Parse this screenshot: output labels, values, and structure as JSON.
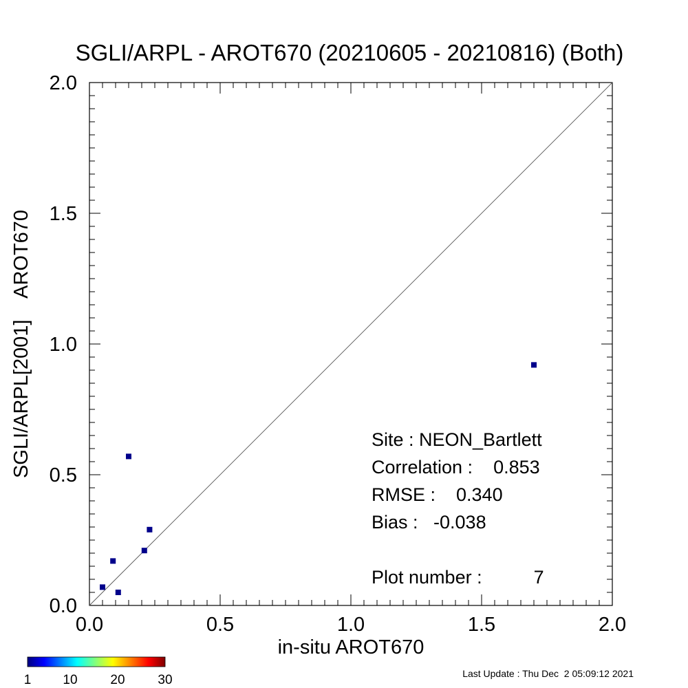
{
  "chart_data": {
    "type": "scatter",
    "title": "SGLI/ARPL - AROT670 (20210605 - 20210816) (Both)",
    "xlabel": "in-situ AROT670",
    "ylabel": "SGLI/ARPL[2001]    AROT670",
    "xlim": [
      0.0,
      2.0
    ],
    "ylim": [
      0.0,
      2.0
    ],
    "xticks": [
      "0.0",
      "0.5",
      "1.0",
      "1.5",
      "2.0"
    ],
    "yticks": [
      "0.0",
      "0.5",
      "1.0",
      "1.5",
      "2.0"
    ],
    "one_to_one_line": true,
    "grid": false,
    "points": [
      {
        "x": 0.05,
        "y": 0.07
      },
      {
        "x": 0.09,
        "y": 0.17
      },
      {
        "x": 0.11,
        "y": 0.05
      },
      {
        "x": 0.15,
        "y": 0.57
      },
      {
        "x": 0.21,
        "y": 0.21
      },
      {
        "x": 0.23,
        "y": 0.29
      },
      {
        "x": 1.7,
        "y": 0.92
      }
    ],
    "point_color": "#00008b",
    "stats": {
      "site": "Site : NEON_Bartlett",
      "correlation": "Correlation :    0.853",
      "rmse": "RMSE :    0.340",
      "bias": "Bias :   -0.038",
      "plot_number": "Plot number :          7"
    },
    "colorbar": {
      "labels": [
        "1",
        "10",
        "20",
        "30"
      ],
      "range": [
        1,
        30
      ],
      "colors": [
        "#00007f",
        "#0000ff",
        "#00ffff",
        "#ffff00",
        "#ff0000",
        "#7f0000"
      ]
    }
  },
  "footer": "Last Update : Thu Dec  2 05:09:12 2021"
}
